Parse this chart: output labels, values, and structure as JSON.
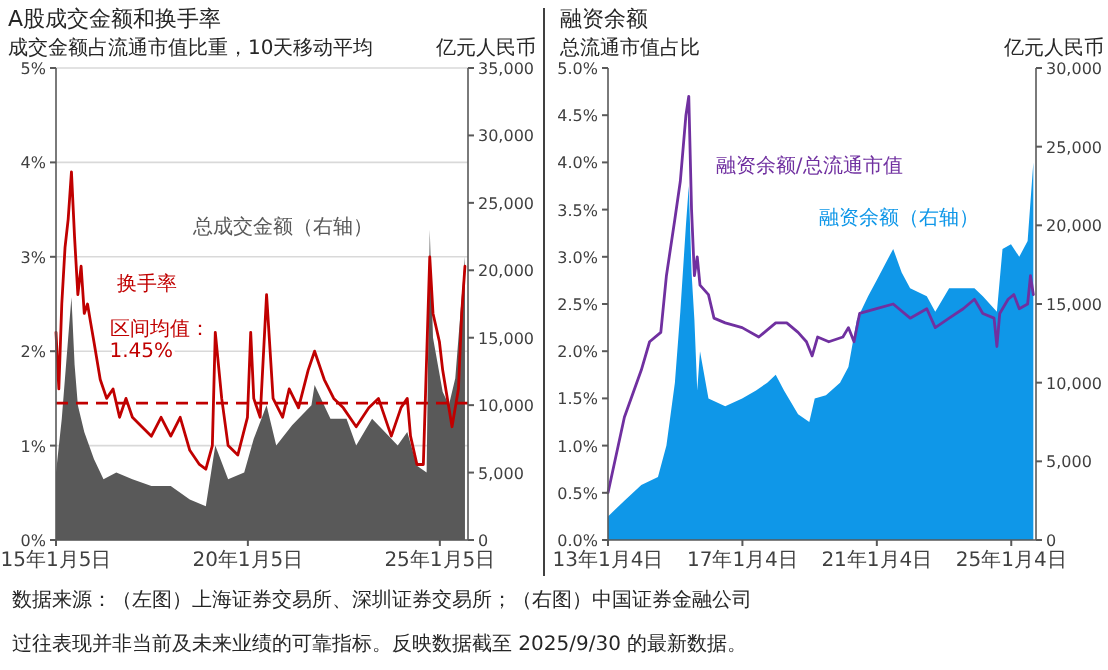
{
  "chart_data": [
    {
      "type": "line",
      "title": "A股成交金额和换手率",
      "ylabel": "成交金额占流通市值比重，10天移动平均",
      "y2label": "亿元人民币",
      "xlim": [
        "2015-01-05",
        "2025-09-30"
      ],
      "xticks": [
        {
          "value": "2015-01-05",
          "label": "15年1月5日"
        },
        {
          "value": "2020-01-05",
          "label": "20年1月5日"
        },
        {
          "value": "2025-01-05",
          "label": "25年1月5日"
        }
      ],
      "ylim": [
        0,
        5
      ],
      "yticks": [
        {
          "value": 0,
          "label": "0%"
        },
        {
          "value": 1,
          "label": "1%"
        },
        {
          "value": 2,
          "label": "2%"
        },
        {
          "value": 3,
          "label": "3%"
        },
        {
          "value": 4,
          "label": "4%"
        },
        {
          "value": 5,
          "label": "5%"
        }
      ],
      "y2lim": [
        0,
        35000
      ],
      "y2ticks": [
        {
          "value": 0,
          "label": "0"
        },
        {
          "value": 5000,
          "label": "5,000"
        },
        {
          "value": 10000,
          "label": "10,000"
        },
        {
          "value": 15000,
          "label": "15,000"
        },
        {
          "value": 20000,
          "label": "20,000"
        },
        {
          "value": 25000,
          "label": "25,000"
        },
        {
          "value": 30000,
          "label": "30,000"
        },
        {
          "value": 35000,
          "label": "35,000"
        }
      ],
      "grid": "y",
      "legend": false,
      "series": [
        {
          "name": "总成交金额（右轴）",
          "type": "area",
          "axis": "y2",
          "color": "#595959",
          "x": [
            "2015-01-05",
            "2015-03",
            "2015-05",
            "2015-06",
            "2015-07",
            "2015-08",
            "2015-10",
            "2016-01",
            "2016-04",
            "2016-08",
            "2017-01",
            "2017-07",
            "2018-01",
            "2018-07",
            "2018-12",
            "2019-03",
            "2019-07",
            "2019-12",
            "2020-03",
            "2020-07",
            "2020-10",
            "2021-03",
            "2021-09",
            "2021-10",
            "2022-03",
            "2022-08",
            "2022-11",
            "2023-04",
            "2023-08",
            "2023-12",
            "2024-03",
            "2024-06",
            "2024-09",
            "2024-10",
            "2024-11",
            "2025-02",
            "2025-04",
            "2025-06",
            "2025-08",
            "2025-09"
          ],
          "values": [
            5000,
            9000,
            15000,
            18000,
            13000,
            10000,
            8000,
            6000,
            4500,
            5000,
            4500,
            4000,
            4000,
            3000,
            2500,
            7000,
            4500,
            5000,
            7500,
            10000,
            7000,
            8500,
            10000,
            11500,
            9000,
            9000,
            7000,
            9000,
            8000,
            7000,
            8000,
            5500,
            5000,
            23000,
            15000,
            11000,
            10000,
            12000,
            18000,
            21000
          ]
        },
        {
          "name": "换手率",
          "axis": "y",
          "color": "#c00000",
          "x": [
            "2015-01-05",
            "2015-02",
            "2015-03",
            "2015-04",
            "2015-05",
            "2015-06",
            "2015-07",
            "2015-08",
            "2015-09",
            "2015-10",
            "2015-11",
            "2015-12",
            "2016-01",
            "2016-03",
            "2016-05",
            "2016-07",
            "2016-09",
            "2016-11",
            "2017-01",
            "2017-04",
            "2017-07",
            "2017-10",
            "2018-01",
            "2018-04",
            "2018-07",
            "2018-10",
            "2018-12",
            "2019-02",
            "2019-03",
            "2019-05",
            "2019-07",
            "2019-10",
            "2020-01",
            "2020-02",
            "2020-03",
            "2020-05",
            "2020-07",
            "2020-09",
            "2020-12",
            "2021-02",
            "2021-05",
            "2021-08",
            "2021-10",
            "2022-01",
            "2022-04",
            "2022-07",
            "2022-11",
            "2023-03",
            "2023-06",
            "2023-10",
            "2024-01",
            "2024-03",
            "2024-04",
            "2024-06",
            "2024-08",
            "2024-10",
            "2024-11",
            "2025-01",
            "2025-02",
            "2025-04",
            "2025-05",
            "2025-07",
            "2025-08",
            "2025-09"
          ],
          "values": [
            2.2,
            1.6,
            2.5,
            3.1,
            3.4,
            3.9,
            3.2,
            2.6,
            2.9,
            2.4,
            2.5,
            2.3,
            2.1,
            1.7,
            1.5,
            1.6,
            1.3,
            1.5,
            1.3,
            1.2,
            1.1,
            1.3,
            1.1,
            1.3,
            0.95,
            0.8,
            0.75,
            1.0,
            2.2,
            1.5,
            1.0,
            0.9,
            1.3,
            2.2,
            1.5,
            1.3,
            2.6,
            1.5,
            1.3,
            1.6,
            1.4,
            1.8,
            2.0,
            1.7,
            1.5,
            1.4,
            1.2,
            1.4,
            1.5,
            1.1,
            1.4,
            1.5,
            1.1,
            0.8,
            0.8,
            3.0,
            2.4,
            2.1,
            1.8,
            1.4,
            1.2,
            1.6,
            2.4,
            2.9
          ]
        }
      ],
      "ref_lines": [
        {
          "axis": "y",
          "value": 1.45,
          "label": "区间均值：\n1.45%",
          "color": "#c00000",
          "line_style": "dashed"
        }
      ],
      "annotations": [
        "数据来源：（左图）上海证券交易所、深圳证券交易所；（右图）中国证券金融公司",
        "过往表现并非当前及未来业绩的可靠指标。反映数据截至 2025/9/30 的最新数据。"
      ]
    },
    {
      "type": "line",
      "title": "融资余额",
      "ylabel": "总流通市值占比",
      "y2label": "亿元人民币",
      "xlim": [
        "2013-01-04",
        "2025-09-30"
      ],
      "xticks": [
        {
          "value": "2013-01-04",
          "label": "13年1月4日"
        },
        {
          "value": "2017-01-04",
          "label": "17年1月4日"
        },
        {
          "value": "2021-01-04",
          "label": "21年1月4日"
        },
        {
          "value": "2025-01-04",
          "label": "25年1月4日"
        }
      ],
      "ylim": [
        0,
        5
      ],
      "yticks": [
        {
          "value": 0,
          "label": "0.0%"
        },
        {
          "value": 0.5,
          "label": "0.5%"
        },
        {
          "value": 1,
          "label": "1.0%"
        },
        {
          "value": 1.5,
          "label": "1.5%"
        },
        {
          "value": 2,
          "label": "2.0%"
        },
        {
          "value": 2.5,
          "label": "2.5%"
        },
        {
          "value": 3,
          "label": "3.0%"
        },
        {
          "value": 3.5,
          "label": "3.5%"
        },
        {
          "value": 4,
          "label": "4.0%"
        },
        {
          "value": 4.5,
          "label": "4.5%"
        },
        {
          "value": 5,
          "label": "5.0%"
        }
      ],
      "y2lim": [
        0,
        30000
      ],
      "y2ticks": [
        {
          "value": 0,
          "label": "0"
        },
        {
          "value": 5000,
          "label": "5,000"
        },
        {
          "value": 10000,
          "label": "10,000"
        },
        {
          "value": 15000,
          "label": "15,000"
        },
        {
          "value": 20000,
          "label": "20,000"
        },
        {
          "value": 25000,
          "label": "25,000"
        },
        {
          "value": 30000,
          "label": "30,000"
        }
      ],
      "legend": false,
      "series": [
        {
          "name": "融资余额（右轴）",
          "type": "area",
          "axis": "y2",
          "color": "#0f97e8",
          "x": [
            "2013-01-04",
            "2013-07",
            "2014-01",
            "2014-07",
            "2014-10",
            "2015-01",
            "2015-03",
            "2015-05",
            "2015-06",
            "2015-07",
            "2015-08",
            "2015-09",
            "2015-10",
            "2016-01",
            "2016-07",
            "2017-01",
            "2017-06",
            "2017-10",
            "2018-01",
            "2018-04",
            "2018-09",
            "2019-01",
            "2019-03",
            "2019-07",
            "2019-12",
            "2020-03",
            "2020-06",
            "2020-10",
            "2021-01",
            "2021-04",
            "2021-07",
            "2021-10",
            "2022-01",
            "2022-07",
            "2022-10",
            "2023-03",
            "2023-08",
            "2023-12",
            "2024-03",
            "2024-08",
            "2024-10",
            "2025-01",
            "2025-04",
            "2025-07",
            "2025-08",
            "2025-09"
          ],
          "values": [
            1500,
            2500,
            3500,
            4000,
            6000,
            10000,
            14500,
            20000,
            22500,
            17000,
            14000,
            9500,
            12000,
            9000,
            8500,
            9000,
            9500,
            10000,
            10500,
            9500,
            8000,
            7500,
            9000,
            9200,
            10000,
            11000,
            14000,
            15500,
            16500,
            17500,
            18500,
            17000,
            16000,
            15500,
            14500,
            16000,
            16000,
            16000,
            15500,
            14500,
            18500,
            18800,
            18000,
            19000,
            21500,
            24000
          ]
        },
        {
          "name": "融资余额/总流通市值",
          "axis": "y",
          "color": "#7030a0",
          "x": [
            "2013-01-04",
            "2013-07",
            "2014-01",
            "2014-04",
            "2014-08",
            "2014-10",
            "2015-01",
            "2015-03",
            "2015-05",
            "2015-06",
            "2015-07",
            "2015-08",
            "2015-09",
            "2015-10",
            "2016-01",
            "2016-03",
            "2016-07",
            "2017-01",
            "2017-07",
            "2018-01",
            "2018-05",
            "2018-09",
            "2018-12",
            "2019-02",
            "2019-04",
            "2019-08",
            "2020-01",
            "2020-03",
            "2020-05",
            "2020-07",
            "2021-01",
            "2021-07",
            "2022-01",
            "2022-07",
            "2022-10",
            "2023-03",
            "2023-08",
            "2023-12",
            "2024-03",
            "2024-07",
            "2024-08",
            "2024-09",
            "2024-12",
            "2025-02",
            "2025-04",
            "2025-07",
            "2025-08",
            "2025-09"
          ],
          "values": [
            0.5,
            1.3,
            1.8,
            2.1,
            2.2,
            2.8,
            3.4,
            3.8,
            4.5,
            4.7,
            3.5,
            2.8,
            3.0,
            2.7,
            2.6,
            2.35,
            2.3,
            2.25,
            2.15,
            2.3,
            2.3,
            2.2,
            2.1,
            1.95,
            2.15,
            2.1,
            2.15,
            2.25,
            2.1,
            2.4,
            2.45,
            2.5,
            2.35,
            2.45,
            2.25,
            2.35,
            2.45,
            2.55,
            2.4,
            2.35,
            2.05,
            2.4,
            2.55,
            2.6,
            2.45,
            2.5,
            2.8,
            2.6
          ]
        }
      ]
    }
  ]
}
